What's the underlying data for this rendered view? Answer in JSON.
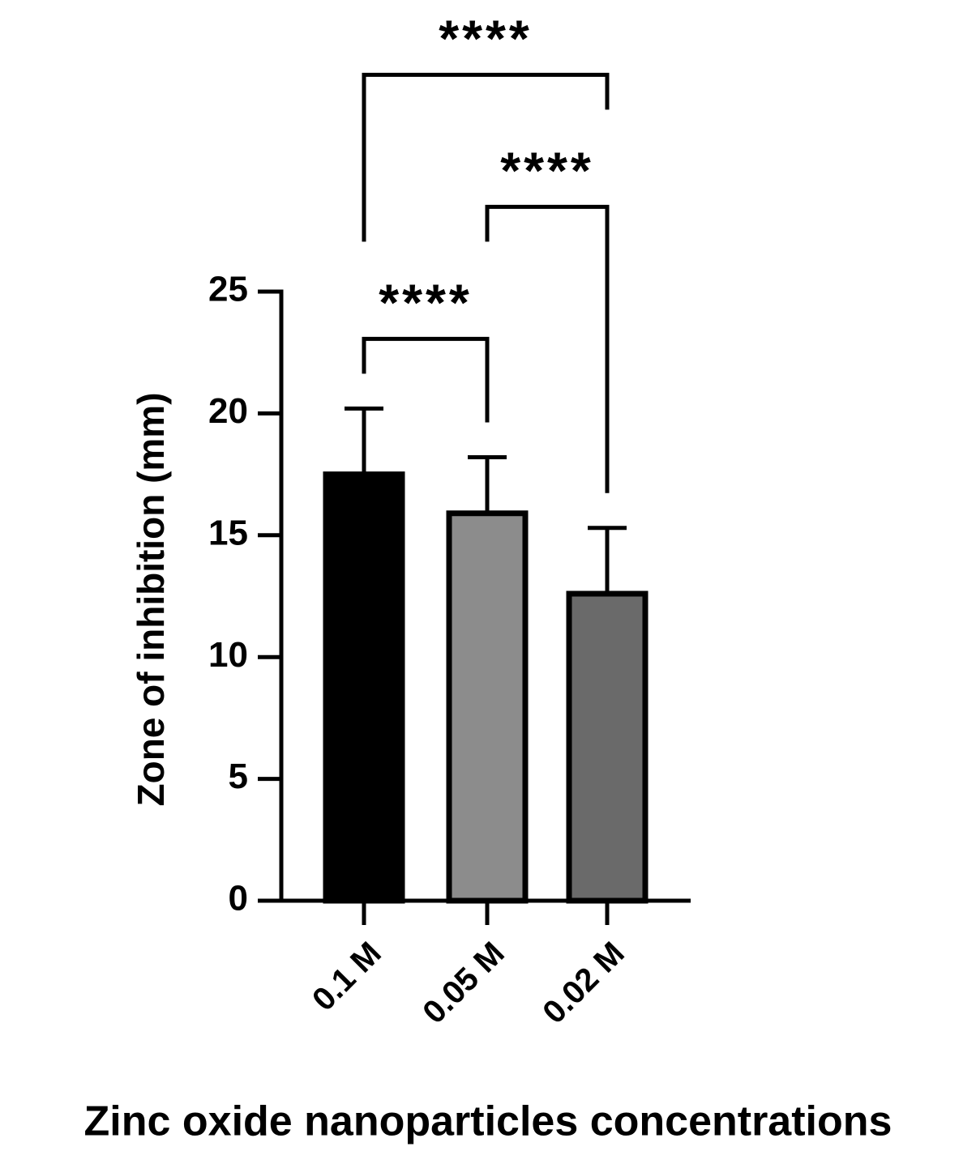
{
  "chart_data": {
    "type": "bar",
    "x_label": "Zinc oxide nanoparticles concentrations",
    "y_label": "Zone of inhibition (mm)",
    "categories": [
      "0.1 M",
      "0.05 M",
      "0.02 M"
    ],
    "values": [
      17.5,
      15.9,
      12.6
    ],
    "errors": [
      2.7,
      2.3,
      2.7
    ],
    "colors": [
      "#000000",
      "#8c8c8c",
      "#6a6a6a"
    ],
    "ylim": [
      0,
      25
    ],
    "yticks": [
      0,
      5,
      10,
      15,
      20,
      25
    ],
    "comparisons": [
      {
        "groups": [
          0,
          1
        ],
        "label": "****"
      },
      {
        "groups": [
          1,
          2
        ],
        "label": "****"
      },
      {
        "groups": [
          0,
          2
        ],
        "label": "****"
      }
    ]
  }
}
